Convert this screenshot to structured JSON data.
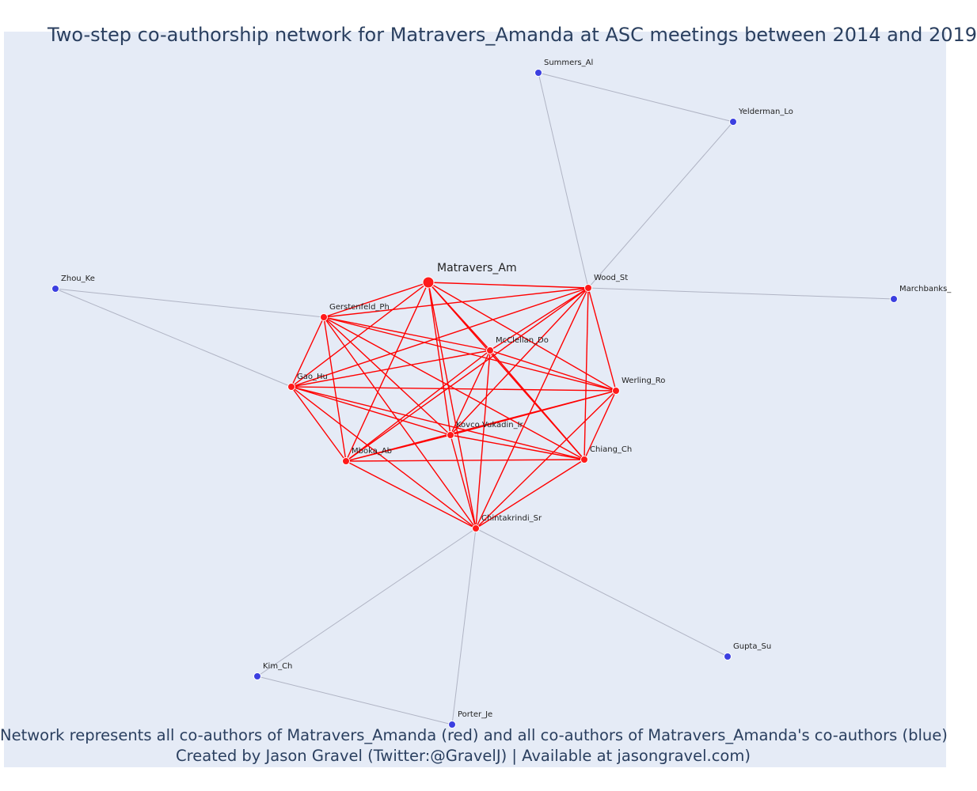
{
  "title": "Two-step co-authorship network for Matravers_Amanda at ASC meetings between 2014 and 2019",
  "caption_line1": "Network represents all co-authors of Matravers_Amanda (red) and all co-authors of Matravers_Amanda's co-authors (blue)",
  "caption_line2": "Created by Jason Gravel (Twitter:@GravelJ) | Available at jasongravel.com)",
  "colors": {
    "background": "#e5ebf6",
    "coauthor_node": "#ff1a1a",
    "second_step_node": "#3b3fe0",
    "coauthor_edge": "#ff0000",
    "second_step_edge": "#b0b4c4",
    "title_text": "#2a3f5f"
  },
  "nodes": [
    {
      "id": "matravers",
      "label": "Matravers_Am",
      "group": "ego"
    },
    {
      "id": "gerstenfeld",
      "label": "Gerstenfeld_Ph",
      "group": "coauthor"
    },
    {
      "id": "mcclellan",
      "label": "McClellan_Do",
      "group": "coauthor"
    },
    {
      "id": "wood",
      "label": "Wood_St",
      "group": "coauthor"
    },
    {
      "id": "gao",
      "label": "Gao_Hu",
      "group": "coauthor"
    },
    {
      "id": "werling",
      "label": "Werling_Ro",
      "group": "coauthor"
    },
    {
      "id": "kovco",
      "label": "Kovco Vukadin_Ir",
      "group": "coauthor"
    },
    {
      "id": "mboka",
      "label": "Mboka_Ab",
      "group": "coauthor"
    },
    {
      "id": "chiang",
      "label": "Chiang_Ch",
      "group": "coauthor"
    },
    {
      "id": "chintakrindi",
      "label": "Chintakrindi_Sr",
      "group": "coauthor"
    },
    {
      "id": "summers",
      "label": "Summers_Al",
      "group": "second"
    },
    {
      "id": "yelderman",
      "label": "Yelderman_Lo",
      "group": "second"
    },
    {
      "id": "zhou",
      "label": "Zhou_Ke",
      "group": "second"
    },
    {
      "id": "marchbanks",
      "label": "Marchbanks_",
      "group": "second"
    },
    {
      "id": "kim",
      "label": "Kim_Ch",
      "group": "second"
    },
    {
      "id": "porter",
      "label": "Porter_Je",
      "group": "second"
    },
    {
      "id": "gupta",
      "label": "Gupta_Su",
      "group": "second"
    }
  ],
  "edges_second_step": [
    [
      "summers",
      "yelderman"
    ],
    [
      "summers",
      "wood"
    ],
    [
      "yelderman",
      "wood"
    ],
    [
      "wood",
      "marchbanks"
    ],
    [
      "zhou",
      "gerstenfeld"
    ],
    [
      "zhou",
      "gao"
    ],
    [
      "chintakrindi",
      "kim"
    ],
    [
      "chintakrindi",
      "porter"
    ],
    [
      "chintakrindi",
      "gupta"
    ],
    [
      "kim",
      "porter"
    ]
  ]
}
